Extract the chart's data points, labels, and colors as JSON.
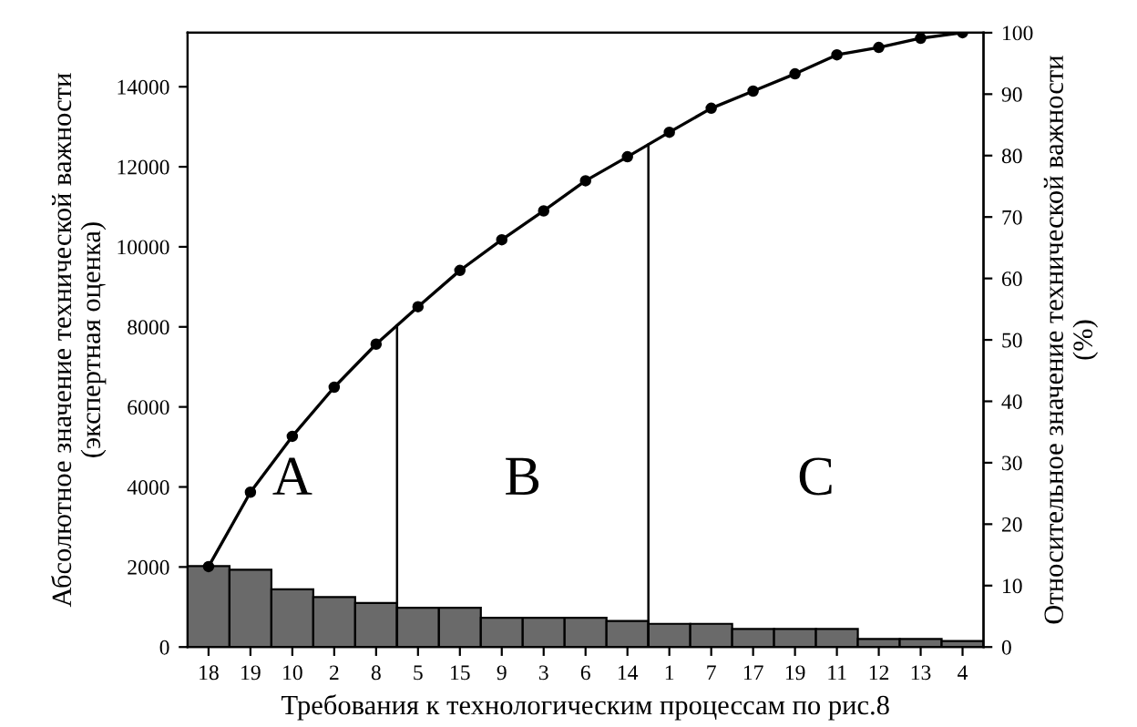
{
  "chart_data": {
    "type": "bar",
    "xlabel": "Требования к технологическим процессам по рис.8",
    "ylabel": "Абсолютное значение технической важности\n(экспертная оценка)",
    "y2label": "Относительное значение технической важности\n(%)",
    "categories": [
      "18",
      "19",
      "10",
      "2",
      "8",
      "5",
      "15",
      "9",
      "3",
      "6",
      "14",
      "1",
      "7",
      "17",
      "19",
      "11",
      "12",
      "13",
      "4"
    ],
    "series": [
      {
        "color": "#6a6a6a",
        "values": [
          2020,
          1930,
          1440,
          1250,
          1100,
          980,
          980,
          730,
          730,
          730,
          650,
          580,
          580,
          450,
          450,
          450,
          200,
          200,
          150
        ]
      },
      {
        "type": "line",
        "axis": "y2",
        "color": "#000000",
        "values": [
          13.1,
          25.2,
          34.3,
          42.3,
          49.3,
          55.4,
          61.3,
          66.3,
          71.0,
          75.9,
          79.8,
          83.8,
          87.7,
          90.5,
          93.3,
          96.4,
          97.6,
          99.1,
          100
        ]
      }
    ],
    "ylim": [
      0,
      15350
    ],
    "yticks": [
      0,
      2000,
      4000,
      6000,
      8000,
      10000,
      12000,
      14000
    ],
    "y2lim": [
      0,
      100
    ],
    "y2ticks": [
      0,
      10,
      20,
      30,
      40,
      50,
      60,
      70,
      80,
      90,
      100
    ],
    "annotations": [
      "A",
      "B",
      "C"
    ],
    "marker": "circle",
    "line_style": "solid",
    "grid": false,
    "legend": false
  }
}
